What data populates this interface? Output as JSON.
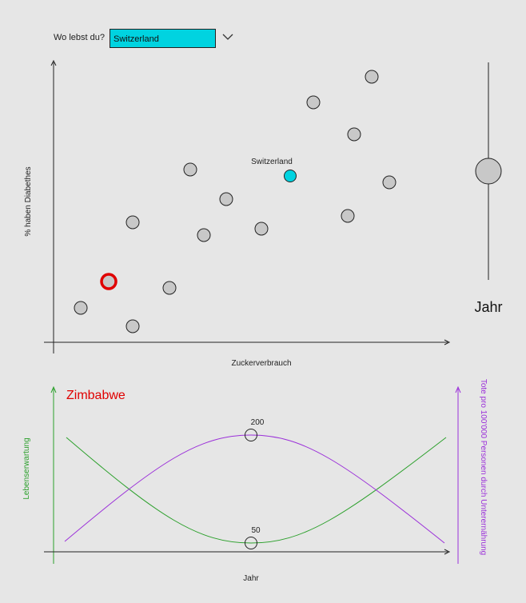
{
  "selector": {
    "label": "Wo lebst du?",
    "selected": "Switzerland",
    "selected_color": "#00d3e0",
    "icon": "chevron-down-icon"
  },
  "scatter": {
    "x_label": "Zuckerverbrauch",
    "y_label": "% haben Diabethes",
    "highlight_label": "Switzerland",
    "highlight_color": "#00d3e0",
    "marked_color": "#e00000",
    "point_color": "#c8c8c8"
  },
  "year_slider": {
    "label": "Jahr"
  },
  "line_chart": {
    "country": "Zimbabwe",
    "country_color": "#e00000",
    "x_label": "Jahr",
    "y_left_label": "Lebenserwartung",
    "y_left_color": "#2ca02c",
    "y_right_label": "Tote pro 100'000 Personen durch Unterernährung",
    "y_right_color": "#9b30d9",
    "marker_top_value": "200",
    "marker_bottom_value": "50"
  }
}
